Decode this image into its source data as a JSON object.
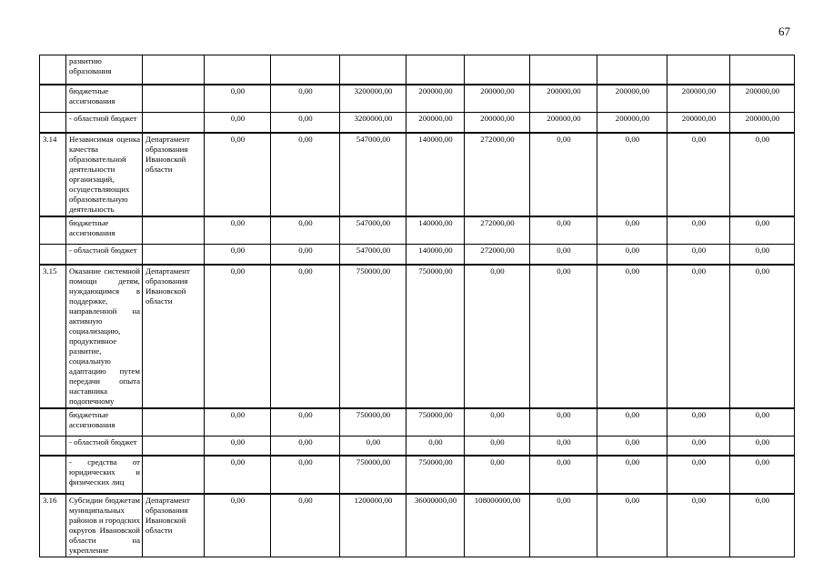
{
  "page": {
    "number": "67"
  },
  "table": {
    "rows": [
      {
        "kind": "continuation",
        "num": "",
        "name": "развитию образования",
        "dept": "",
        "values": [
          "",
          "",
          "",
          "",
          "",
          "",
          "",
          "",
          ""
        ]
      },
      {
        "kind": "budget",
        "num": "",
        "name": "бюджетные ассигнования",
        "dept": "",
        "values": [
          "0,00",
          "0,00",
          "3200000,00",
          "200000,00",
          "200000,00",
          "200000,00",
          "200000,00",
          "200000,00",
          "200000,00"
        ]
      },
      {
        "kind": "regional",
        "num": "",
        "name": "- областной бюджет",
        "dept": "",
        "values": [
          "0,00",
          "0,00",
          "3200000,00",
          "200000,00",
          "200000,00",
          "200000,00",
          "200000,00",
          "200000,00",
          "200000,00"
        ]
      },
      {
        "kind": "item",
        "num": "3.14",
        "name": "Независимая оценка качества образовательной деятельности организаций, осуществляющих образовательную деятельность",
        "dept": "Департамент образования Ивановской области",
        "values": [
          "0,00",
          "0,00",
          "547000,00",
          "140000,00",
          "272000,00",
          "0,00",
          "0,00",
          "0,00",
          "0,00"
        ]
      },
      {
        "kind": "budget",
        "num": "",
        "name": "бюджетные ассигнования",
        "dept": "",
        "values": [
          "0,00",
          "0,00",
          "547000,00",
          "140000,00",
          "272000,00",
          "0,00",
          "0,00",
          "0,00",
          "0,00"
        ]
      },
      {
        "kind": "regional",
        "num": "",
        "name": "- областной бюджет",
        "dept": "",
        "values": [
          "0,00",
          "0,00",
          "547000,00",
          "140000,00",
          "272000,00",
          "0,00",
          "0,00",
          "0,00",
          "0,00"
        ]
      },
      {
        "kind": "item",
        "num": "3.15",
        "name": "Оказание системной помощи детям, нуждающимся в поддержке, направленной на активную социализацию, продуктивное развитие, социальную адаптацию путем передачи опыта наставника подопечному",
        "dept": "Департамент образования Ивановской области",
        "values": [
          "0,00",
          "0,00",
          "750000,00",
          "750000,00",
          "0,00",
          "0,00",
          "0,00",
          "0,00",
          "0,00"
        ]
      },
      {
        "kind": "budget",
        "num": "",
        "name": "бюджетные ассигнования",
        "dept": "",
        "values": [
          "0,00",
          "0,00",
          "750000,00",
          "750000,00",
          "0,00",
          "0,00",
          "0,00",
          "0,00",
          "0,00"
        ]
      },
      {
        "kind": "regional",
        "num": "",
        "name": "- областной бюджет",
        "dept": "",
        "values": [
          "0,00",
          "0,00",
          "0,00",
          "0,00",
          "0,00",
          "0,00",
          "0,00",
          "0,00",
          "0,00"
        ]
      },
      {
        "kind": "funds",
        "num": "",
        "name": "- средства от юридических и физических лиц",
        "dept": "",
        "values": [
          "0,00",
          "0,00",
          "750000,00",
          "750000,00",
          "0,00",
          "0,00",
          "0,00",
          "0,00",
          "0,00"
        ]
      },
      {
        "kind": "item",
        "num": "3.16",
        "name": "Субсидии бюджетам муниципальных районов и городских округов Ивановской области на укрепление",
        "dept": "Департамент образования Ивановской области",
        "values": [
          "0,00",
          "0,00",
          "1200000,00",
          "36000000,00",
          "108000000,00",
          "0,00",
          "0,00",
          "0,00",
          "0,00"
        ]
      }
    ]
  }
}
